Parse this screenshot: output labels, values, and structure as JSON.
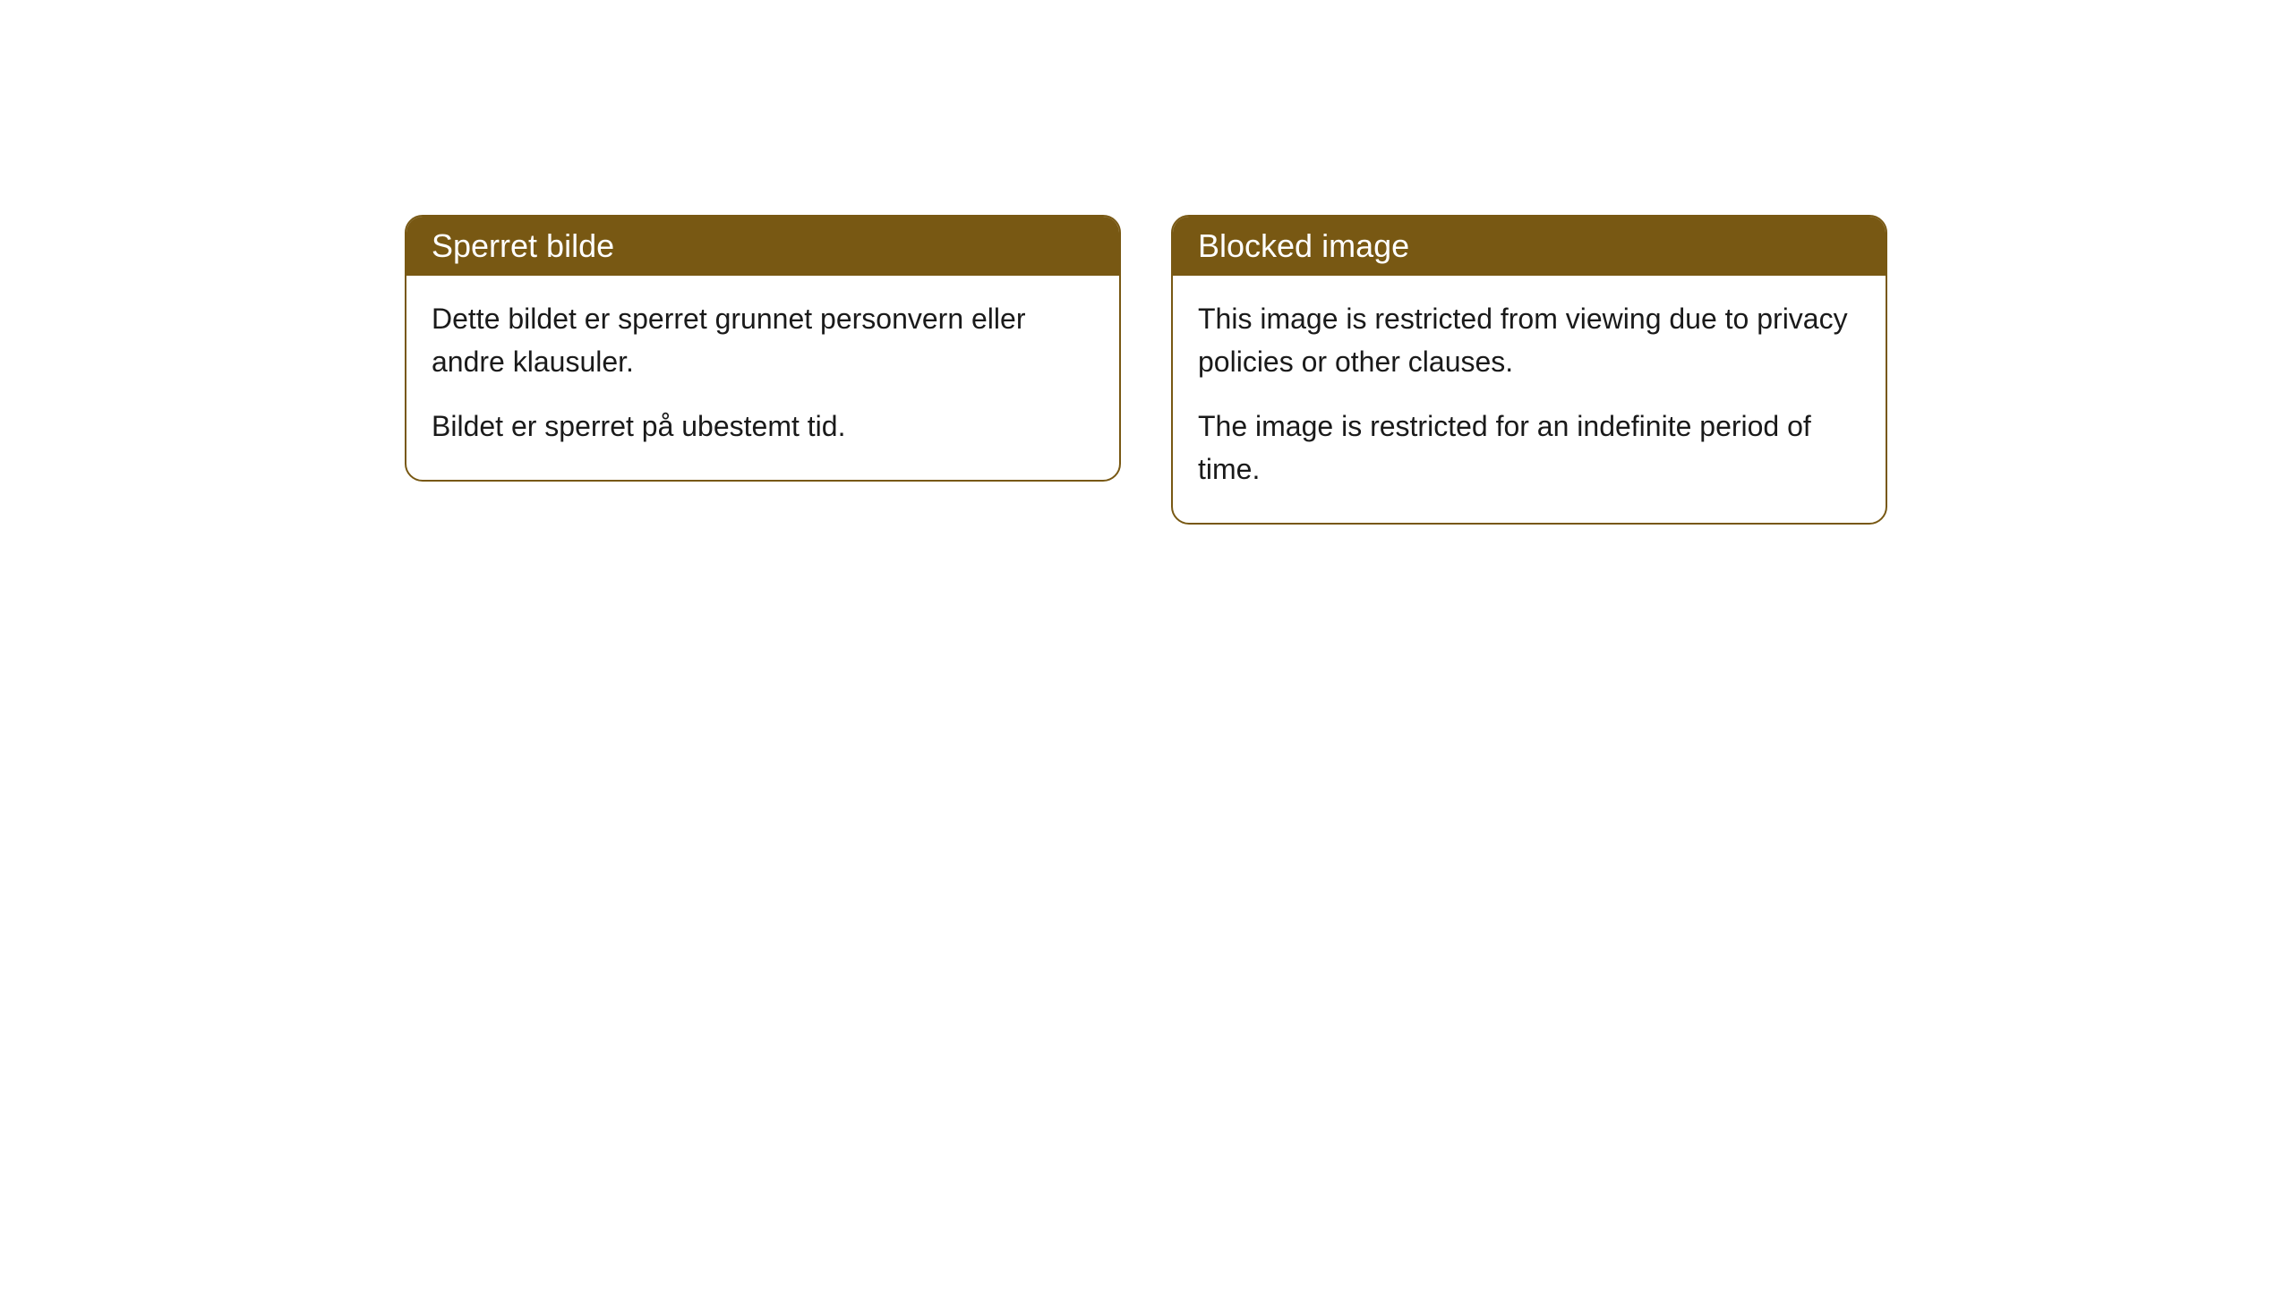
{
  "cards": [
    {
      "title": "Sperret bilde",
      "paragraph1": "Dette bildet er sperret grunnet personvern eller andre klausuler.",
      "paragraph2": "Bildet er sperret på ubestemt tid."
    },
    {
      "title": "Blocked image",
      "paragraph1": "This image is restricted from viewing due to privacy policies or other clauses.",
      "paragraph2": "The image is restricted for an indefinite period of time."
    }
  ],
  "style": {
    "header_bg_color": "#785813",
    "header_text_color": "#ffffff",
    "border_color": "#785813",
    "body_bg_color": "#ffffff",
    "body_text_color": "#1a1a1a",
    "border_radius": 20,
    "title_fontsize": 36,
    "body_fontsize": 32
  }
}
